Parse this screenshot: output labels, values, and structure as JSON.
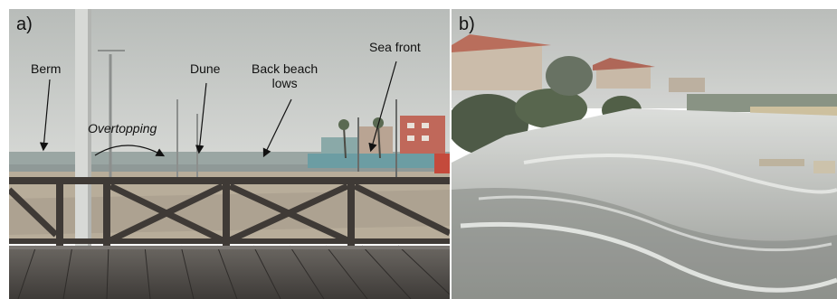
{
  "panels": [
    {
      "label": "a)",
      "annotations": {
        "berm": "Berm",
        "overtopping": "Overtopping",
        "dune": "Dune",
        "back_beach_lows_line1": "Back beach",
        "back_beach_lows_line2": "lows",
        "sea_front": "Sea front"
      }
    },
    {
      "label": "b)"
    }
  ],
  "colors": {
    "sky": "#c9ccc9",
    "sea": "#9aa6a3",
    "sand": "#b8ad9a",
    "deck": "#4a4744",
    "railing": "#3f3a36",
    "foam": "#e4e6e3",
    "water": "#8e918c"
  }
}
